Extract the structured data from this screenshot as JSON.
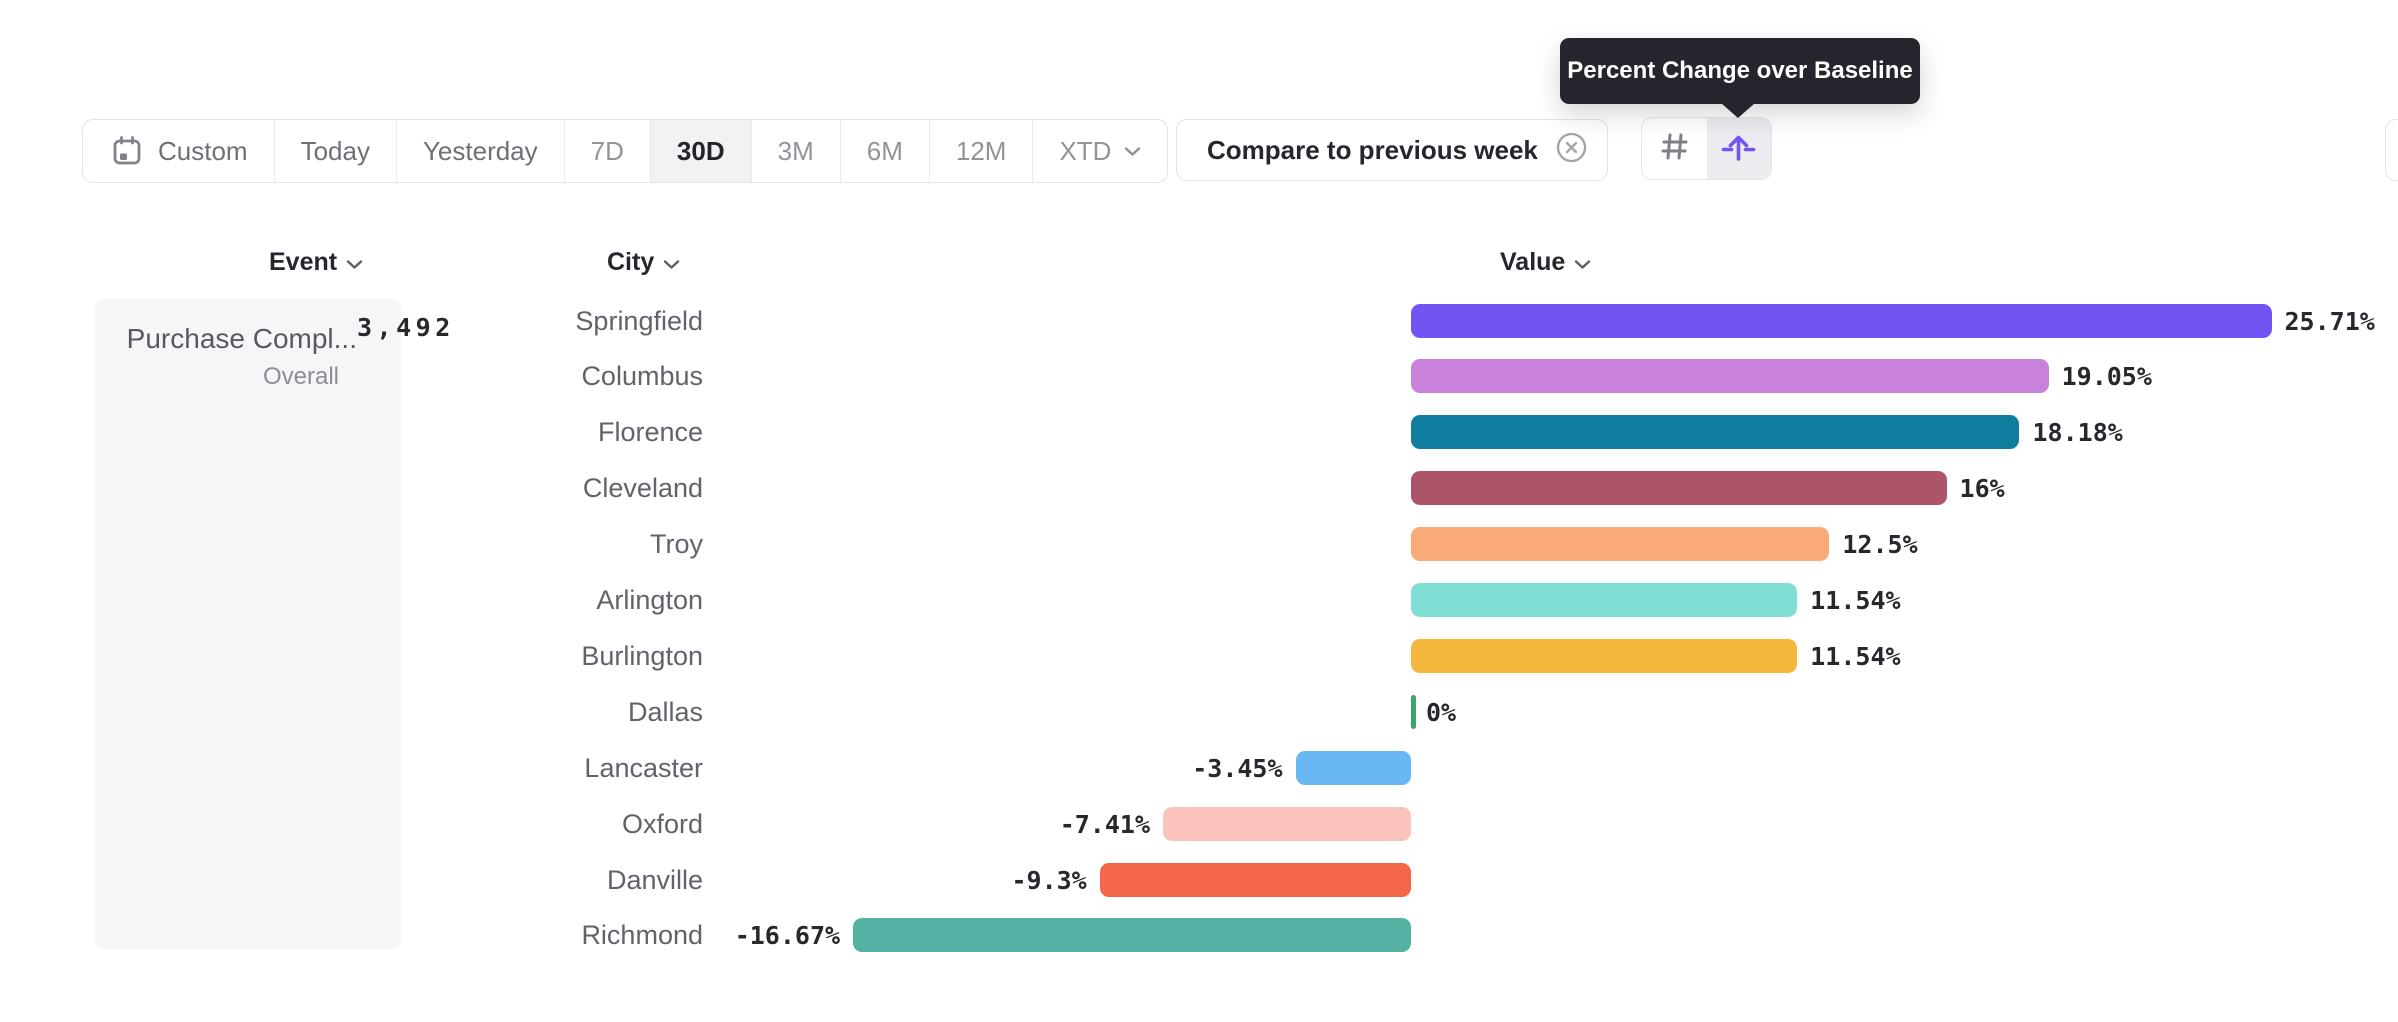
{
  "tooltip": {
    "text": "Percent Change over Baseline"
  },
  "toolbar": {
    "date_ranges": [
      {
        "label": "Custom",
        "icon": "calendar-icon",
        "selected": false,
        "muted": false
      },
      {
        "label": "Today",
        "selected": false,
        "muted": false
      },
      {
        "label": "Yesterday",
        "selected": false,
        "muted": false
      },
      {
        "label": "7D",
        "selected": false,
        "muted": true
      },
      {
        "label": "30D",
        "selected": true,
        "muted": false
      },
      {
        "label": "3M",
        "selected": false,
        "muted": true
      },
      {
        "label": "6M",
        "selected": false,
        "muted": true
      },
      {
        "label": "12M",
        "selected": false,
        "muted": true
      },
      {
        "label": "XTD",
        "selected": false,
        "muted": true,
        "chevron": true
      }
    ],
    "compare_chip": {
      "label": "Compare to previous week",
      "close_icon": "circled-x-icon"
    },
    "view_toggle": {
      "buttons": [
        {
          "name": "absolute-numbers",
          "icon": "hash-icon",
          "selected": false
        },
        {
          "name": "percent-change-over-baseline",
          "icon": "baseline-arrow-icon",
          "selected": true
        }
      ],
      "accent_color": "#7452f4"
    }
  },
  "columns": {
    "event": "Event",
    "city": "City",
    "value": "Value"
  },
  "event_panel": {
    "title": "Purchase Compl...",
    "overall_label": "Overall",
    "overall_value": "3,492"
  },
  "chart_data": {
    "type": "bar",
    "orientation": "horizontal",
    "title": "",
    "xlabel": "Value (percent change over baseline)",
    "ylabel": "City",
    "unit": "%",
    "xlim": [
      -16.67,
      25.71
    ],
    "grid": false,
    "categories": [
      "Springfield",
      "Columbus",
      "Florence",
      "Cleveland",
      "Troy",
      "Arlington",
      "Burlington",
      "Dallas",
      "Lancaster",
      "Oxford",
      "Danville",
      "Richmond"
    ],
    "values": [
      25.71,
      19.05,
      18.18,
      16,
      12.5,
      11.54,
      11.54,
      0,
      -3.45,
      -7.41,
      -9.3,
      -16.67
    ],
    "labels": [
      "25.71%",
      "19.05%",
      "18.18%",
      "16%",
      "12.5%",
      "11.54%",
      "11.54%",
      "0%",
      "-3.45%",
      "-7.41%",
      "-9.3%",
      "-16.67%"
    ],
    "colors": [
      "#7354f2",
      "#c981dc",
      "#107d9e",
      "#ac5568",
      "#faab77",
      "#80dfd4",
      "#f3b73b",
      "#37a56c",
      "#68b6f2",
      "#fac3bd",
      "#f4674b",
      "#53b2a3"
    ],
    "zero_baseline_color": "#37a56c"
  }
}
